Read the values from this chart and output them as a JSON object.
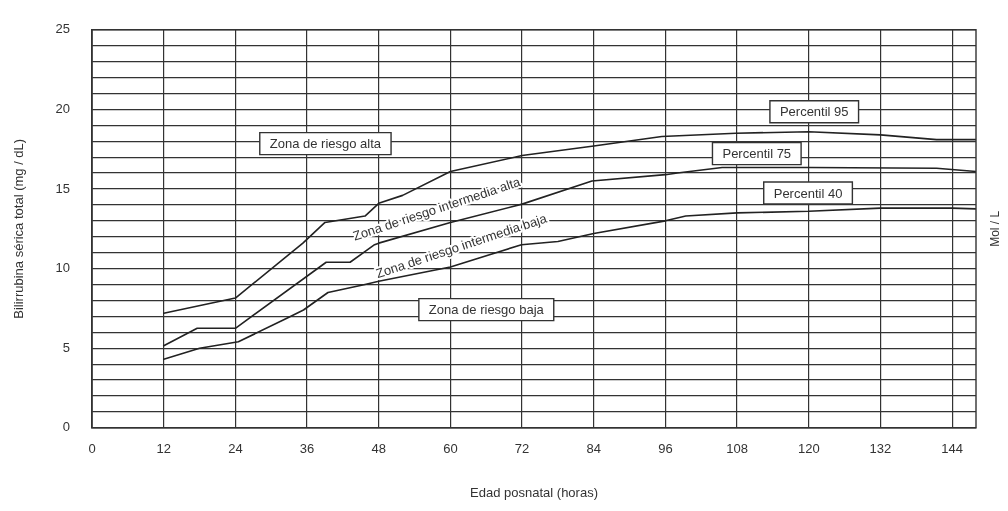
{
  "chart_data": {
    "type": "line",
    "xlabel": "Edad posnatal (horas)",
    "ylabel": "Bilirrubina sérica total (mg / dL)",
    "y2label": "Mol / L",
    "xlim": [
      0,
      148
    ],
    "xticks": [
      0,
      12,
      24,
      36,
      48,
      60,
      72,
      84,
      96,
      108,
      120,
      132,
      144
    ],
    "ylim": [
      0,
      25
    ],
    "yticks": [
      0,
      {
        "value": 1,
        "label": null
      },
      {
        "value": 2,
        "label": null
      },
      {
        "value": 3,
        "label": null
      },
      {
        "value": 4,
        "label": null
      },
      5,
      {
        "value": 6,
        "label": null
      },
      {
        "value": 7,
        "label": null
      },
      {
        "value": 8,
        "label": null
      },
      {
        "value": 9,
        "label": null
      },
      10,
      {
        "value": 11,
        "label": null
      },
      {
        "value": 12,
        "label": null
      },
      {
        "value": 13,
        "label": null
      },
      {
        "value": 14,
        "label": null
      },
      15,
      {
        "value": 16,
        "label": null
      },
      {
        "value": 17,
        "label": null
      },
      {
        "value": 18,
        "label": null
      },
      {
        "value": 19,
        "label": null
      },
      20,
      {
        "value": 21,
        "label": null
      },
      {
        "value": 22,
        "label": null
      },
      {
        "value": 23,
        "label": null
      },
      {
        "value": 24,
        "label": null
      },
      25
    ],
    "grid": true,
    "legend": false,
    "marker": "none",
    "line_style": "solid",
    "series": [
      {
        "name": "Percentil 95",
        "color": "#222222",
        "x": [
          12,
          24,
          35.3,
          39,
          45.7,
          48,
          52,
          60,
          72,
          84,
          95.4,
          107.8,
          120,
          132,
          141.4,
          148
        ],
        "values": [
          7.2,
          8.15,
          11.6,
          12.9,
          13.3,
          14.1,
          14.6,
          16.1,
          17.1,
          17.7,
          18.3,
          18.5,
          18.6,
          18.4,
          18.1,
          18.1
        ]
      },
      {
        "name": "Percentil 75",
        "color": "#222222",
        "x": [
          12,
          17.6,
          24,
          39.2,
          43.2,
          47.3,
          48,
          60,
          72,
          83.7,
          96,
          98,
          105.5,
          120,
          141.4,
          148
        ],
        "values": [
          5.15,
          6.25,
          6.25,
          10.4,
          10.4,
          11.5,
          11.6,
          12.9,
          14.05,
          15.5,
          15.9,
          16.0,
          16.35,
          16.35,
          16.3,
          16.1
        ]
      },
      {
        "name": "Percentil 40",
        "color": "#222222",
        "x": [
          12,
          18,
          24.5,
          32.7,
          35.4,
          39.5,
          45.7,
          48,
          60,
          71.9,
          78,
          84,
          96,
          99.4,
          108,
          120,
          132,
          144,
          148
        ],
        "values": [
          4.3,
          5.0,
          5.4,
          6.9,
          7.4,
          8.5,
          9.0,
          9.2,
          10.1,
          11.5,
          11.7,
          12.2,
          13.0,
          13.3,
          13.5,
          13.6,
          13.8,
          13.8,
          13.75
        ]
      }
    ],
    "annotations": [
      "Zona de riesgo alta",
      "Zona de riesgo intermedia alta",
      "Zona de riesgo intermedia baja",
      "Zona de riesgo baja"
    ]
  }
}
